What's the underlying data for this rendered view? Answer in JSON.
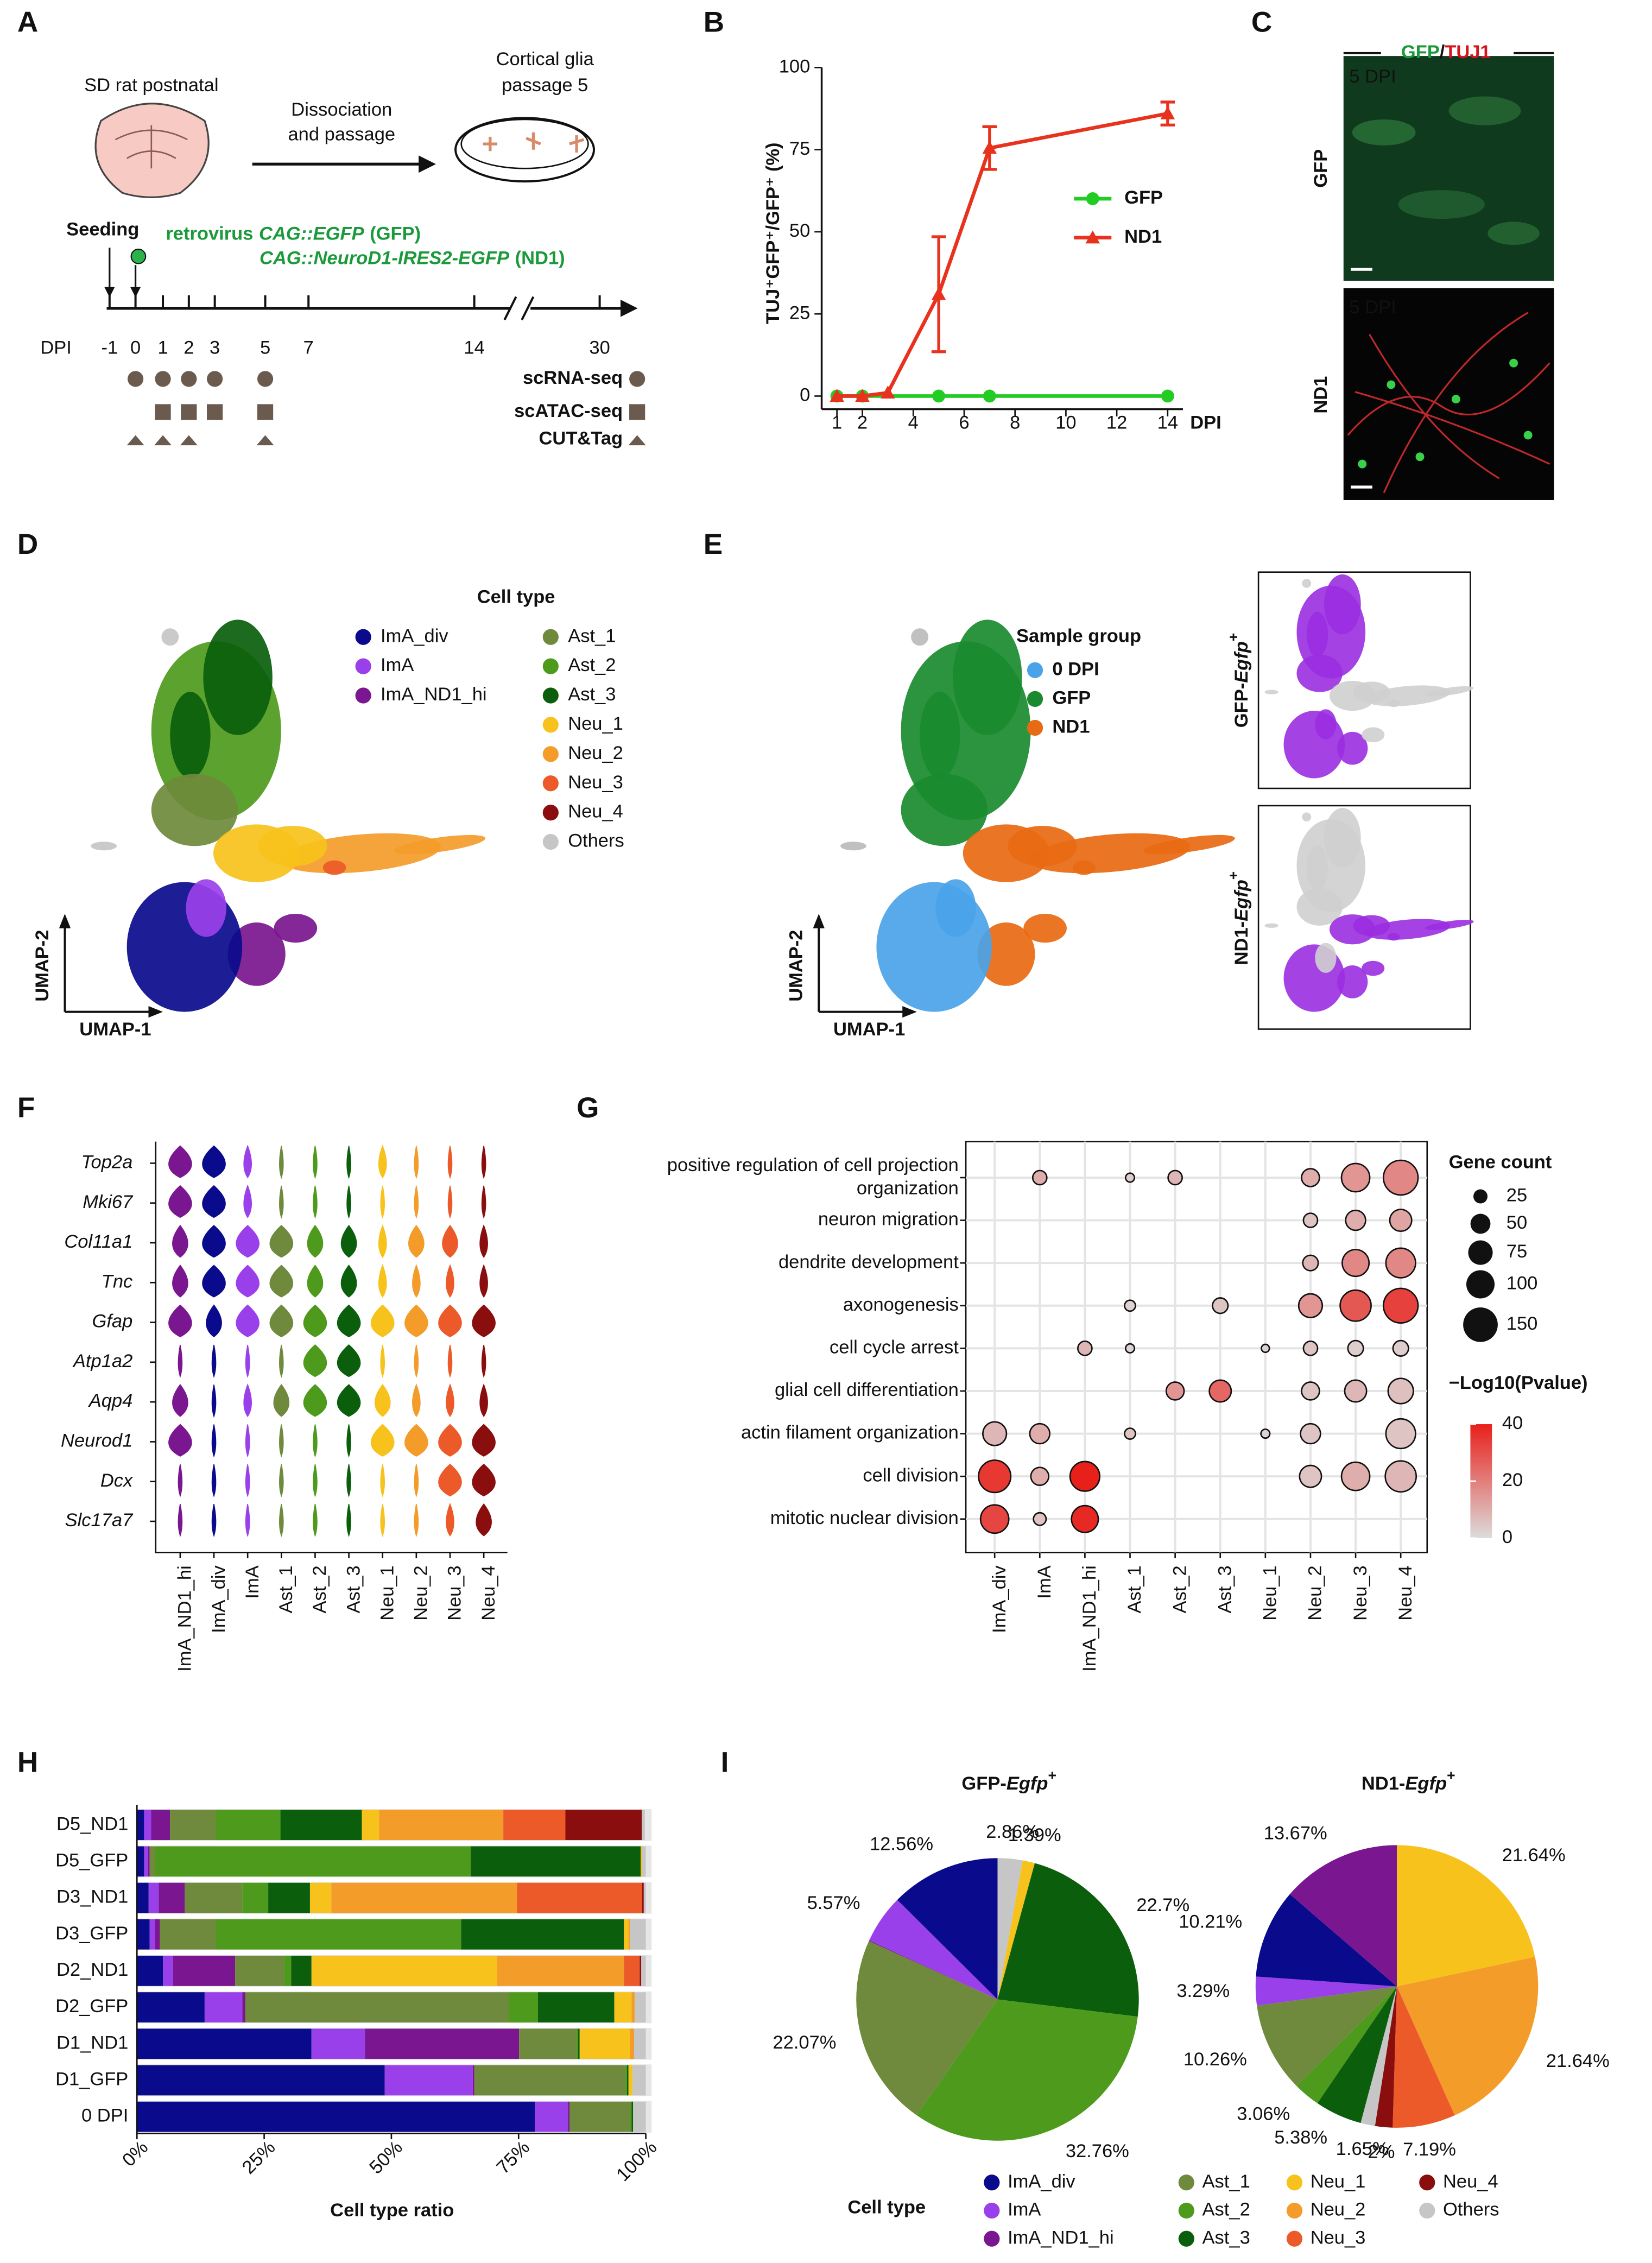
{
  "panel_letters": [
    "A",
    "B",
    "C",
    "D",
    "E",
    "F",
    "G",
    "H",
    "I"
  ],
  "panel_a": {
    "brain_label": "SD rat postnatal",
    "step": [
      "Dissociation",
      "and passage"
    ],
    "dish": [
      "Cortical glia",
      "passage 5"
    ],
    "seeding": "Seeding",
    "virus": {
      "prefix": "retrovirus",
      "gfp": "CAG::EGFP",
      "gfp_tag": "(GFP)",
      "nd1": "CAG::NeuroD1-IRES2-EGFP",
      "nd1_tag": "(ND1)"
    },
    "axis_label": "DPI",
    "days": [
      "-1",
      "0",
      "1",
      "2",
      "3",
      "5",
      "7",
      "14",
      "30"
    ],
    "assays": [
      "scRNA-seq",
      "scATAC-seq",
      "CUT&Tag"
    ]
  },
  "panel_c": {
    "title": [
      "GFP",
      "/",
      "TUJ1"
    ],
    "time": [
      "5 DPI",
      "5 DPI"
    ],
    "rows": [
      "GFP",
      "ND1"
    ]
  },
  "panel_d": {
    "legend_title": "Cell type",
    "cell_types": [
      "ImA_div",
      "ImA",
      "ImA_ND1_hi",
      "Ast_1",
      "Ast_2",
      "Ast_3",
      "Neu_1",
      "Neu_2",
      "Neu_3",
      "Neu_4",
      "Others"
    ],
    "colors": [
      "#0a0a8c",
      "#9a40ea",
      "#7a168f",
      "#6f8a3c",
      "#4e9a1c",
      "#0a5e0c",
      "#f7c21b",
      "#f39c2a",
      "#eb5a28",
      "#8a0e0e",
      "#c6c6c6"
    ],
    "axes": [
      "UMAP-2",
      "UMAP-1"
    ]
  },
  "panel_e": {
    "legend_title": "Sample group",
    "groups": [
      "0 DPI",
      "GFP",
      "ND1"
    ],
    "colors": [
      "#4aa3e8",
      "#1a8a2e",
      "#e86a12"
    ],
    "insets": [
      [
        "GFP-",
        "Egfp",
        "+"
      ],
      [
        "ND1-",
        "Egfp",
        "+"
      ]
    ],
    "axes": [
      "UMAP-2",
      "UMAP-1"
    ]
  },
  "panel_f": {
    "genes": [
      "Top2a",
      "Mki67",
      "Col11a1",
      "Tnc",
      "Gfap",
      "Atp1a2",
      "Aqp4",
      "Neurod1",
      "Dcx",
      "Slc17a7"
    ],
    "cell_types": [
      "ImA_ND1_hi",
      "ImA_div",
      "ImA",
      "Ast_1",
      "Ast_2",
      "Ast_3",
      "Neu_1",
      "Neu_2",
      "Neu_3",
      "Neu_4"
    ],
    "colors": [
      "#7a168f",
      "#0a0a8c",
      "#9a40ea",
      "#6f8a3c",
      "#4e9a1c",
      "#0a5e0c",
      "#f7c21b",
      "#f39c2a",
      "#eb5a28",
      "#8a0e0e"
    ]
  },
  "panel_i_legend": {
    "title": "Cell type",
    "names": [
      "ImA_div",
      "ImA",
      "ImA_ND1_hi",
      "Ast_1",
      "Ast_2",
      "Ast_3",
      "Neu_1",
      "Neu_2",
      "Neu_3",
      "Neu_4",
      "Others"
    ],
    "colors": [
      "#0a0a8c",
      "#9a40ea",
      "#7a168f",
      "#6f8a3c",
      "#4e9a1c",
      "#0a5e0c",
      "#f7c21b",
      "#f39c2a",
      "#eb5a28",
      "#8a0e0e",
      "#c6c6c6"
    ]
  },
  "chart_data": [
    {
      "type": "line",
      "ylabel": "TUJ⁺GFP⁺/GFP⁺ (%)",
      "xlabel": "DPI",
      "xlim": [
        0.4,
        14.6
      ],
      "xticks": [
        1,
        2,
        4,
        6,
        8,
        10,
        12,
        14
      ],
      "ylim": [
        -4,
        100
      ],
      "yticks": [
        0,
        25,
        50,
        75,
        100
      ],
      "legend": "right",
      "series": [
        {
          "name": "GFP",
          "color": "#22cc22",
          "marker": "circle",
          "x": [
            1,
            2,
            5,
            7,
            14
          ],
          "values": [
            0,
            0,
            0,
            0,
            0
          ]
        },
        {
          "name": "ND1",
          "color": "#e8321e",
          "marker": "triangle",
          "x": [
            1,
            2,
            3,
            5,
            7,
            14
          ],
          "values": [
            0,
            0,
            1,
            31,
            75.5,
            86
          ],
          "errors": [
            null,
            null,
            null,
            17.5,
            6.5,
            3.5
          ]
        }
      ]
    },
    {
      "type": "dot",
      "categories": [
        "ImA_div",
        "ImA",
        "ImA_ND1_hi",
        "Ast_1",
        "Ast_2",
        "Ast_3",
        "Neu_1",
        "Neu_2",
        "Neu_3",
        "Neu_4"
      ],
      "terms": [
        [
          "positive regulation of cell projection",
          "organization"
        ],
        [
          "neuron migration"
        ],
        [
          "dendrite development"
        ],
        [
          "axonogenesis"
        ],
        [
          "cell cycle arrest"
        ],
        [
          "glial cell differentiation"
        ],
        [
          "actin filament organization"
        ],
        [
          "cell division"
        ],
        [
          "mitotic nuclear division"
        ]
      ],
      "counts": [
        [
          null,
          25,
          null,
          10,
          25,
          null,
          null,
          40,
          100,
          150
        ],
        [
          null,
          null,
          null,
          null,
          null,
          null,
          null,
          25,
          50,
          60
        ],
        [
          null,
          null,
          null,
          null,
          null,
          null,
          null,
          30,
          90,
          110
        ],
        [
          null,
          null,
          null,
          15,
          null,
          30,
          null,
          70,
          120,
          150
        ],
        [
          null,
          null,
          25,
          10,
          null,
          null,
          8,
          25,
          30,
          30
        ],
        [
          null,
          null,
          null,
          null,
          40,
          60,
          null,
          40,
          60,
          80
        ],
        [
          70,
          50,
          null,
          15,
          null,
          null,
          10,
          50,
          null,
          110
        ],
        [
          130,
          40,
          110,
          null,
          null,
          null,
          null,
          60,
          100,
          120
        ],
        [
          100,
          20,
          90,
          null,
          null,
          null,
          null,
          null,
          null,
          null
        ]
      ],
      "logp": [
        [
          null,
          10,
          null,
          3,
          8,
          null,
          null,
          10,
          15,
          18
        ],
        [
          null,
          null,
          null,
          null,
          null,
          null,
          null,
          5,
          10,
          12
        ],
        [
          null,
          null,
          null,
          null,
          null,
          null,
          null,
          8,
          18,
          18
        ],
        [
          null,
          null,
          null,
          2,
          null,
          5,
          null,
          15,
          28,
          33
        ],
        [
          null,
          null,
          8,
          2,
          null,
          null,
          2,
          5,
          3,
          3
        ],
        [
          null,
          null,
          null,
          null,
          15,
          25,
          null,
          5,
          8,
          6
        ],
        [
          8,
          10,
          null,
          5,
          null,
          null,
          2,
          5,
          null,
          5
        ],
        [
          35,
          10,
          40,
          null,
          null,
          null,
          null,
          5,
          10,
          8
        ],
        [
          32,
          5,
          38,
          null,
          null,
          null,
          null,
          null,
          null,
          null
        ]
      ],
      "grid": true,
      "size_legend": {
        "title": "Gene count",
        "values": [
          25,
          50,
          75,
          100,
          150
        ]
      },
      "color_legend": {
        "title": "−Log10(Pvalue)",
        "clim": [
          0,
          40
        ],
        "ticks": [
          0,
          20,
          40
        ],
        "colors": [
          "#dcdcdc",
          "#e8201a"
        ]
      }
    },
    {
      "type": "stacked-bar",
      "orientation": "horizontal",
      "xlabel": "Cell type ratio",
      "categories": [
        "D5_ND1",
        "D5_GFP",
        "D3_ND1",
        "D3_GFP",
        "D2_ND1",
        "D2_GFP",
        "D1_ND1",
        "D1_GFP",
        "0 DPI"
      ],
      "xlim": [
        0,
        100
      ],
      "xticks": [
        {
          "value": 0,
          "label": "0%"
        },
        {
          "value": 25,
          "label": "25%"
        },
        {
          "value": 50,
          "label": "50%"
        },
        {
          "value": 75,
          "label": "75%"
        },
        {
          "value": 100,
          "label": "100%"
        }
      ],
      "series": [
        {
          "name": "ImA_div",
          "color": "#0a0a8c",
          "values": [
            1.4,
            1.4,
            2.3,
            2.5,
            5.1,
            13.3,
            34.3,
            48.7,
            78.2
          ]
        },
        {
          "name": "ImA",
          "color": "#9a40ea",
          "values": [
            1.4,
            0.8,
            2,
            1.1,
            2,
            7.4,
            10.5,
            17.3,
            6.5
          ]
        },
        {
          "name": "ImA_ND1_hi",
          "color": "#7a168f",
          "values": [
            3.7,
            0.3,
            5.1,
            0.9,
            12.2,
            0.6,
            30.3,
            0.3,
            0.3
          ]
        },
        {
          "name": "Ast_1",
          "color": "#6f8a3c",
          "values": [
            9,
            1.1,
            11.3,
            11,
            9.6,
            51.8,
            11.3,
            29.7,
            11.9
          ]
        },
        {
          "name": "Ast_2",
          "color": "#4e9a1c",
          "values": [
            12.7,
            62,
            5.1,
            48.2,
            1.4,
            5.7,
            0.3,
            0.3,
            0.3
          ]
        },
        {
          "name": "Ast_3",
          "color": "#0a5e0c",
          "values": [
            16,
            33.4,
            8.2,
            32,
            4,
            15,
            0.3,
            0.3,
            0.3
          ]
        },
        {
          "name": "Neu_1",
          "color": "#f7c21b",
          "values": [
            3.4,
            0.3,
            4.2,
            0.9,
            36.5,
            3.4,
            9.9,
            0.8,
            0
          ]
        },
        {
          "name": "Neu_2",
          "color": "#f39c2a",
          "values": [
            24.4,
            0,
            36.5,
            0.3,
            24.9,
            0.6,
            0.8,
            0,
            0
          ]
        },
        {
          "name": "Neu_3",
          "color": "#eb5a28",
          "values": [
            12.2,
            0,
            24.6,
            0,
            3.1,
            0,
            0,
            0,
            0
          ]
        },
        {
          "name": "Neu_4",
          "color": "#8a0e0e",
          "values": [
            15,
            0,
            0.3,
            0,
            0.3,
            0,
            0,
            0,
            0
          ]
        },
        {
          "name": "Others",
          "color": "#c6c6c6",
          "values": [
            0.6,
            0.7,
            0.4,
            3.1,
            0.9,
            2.2,
            2.3,
            2.6,
            2.5
          ]
        }
      ]
    },
    {
      "type": "pie",
      "title": [
        "GFP-",
        "Egfp",
        "+"
      ],
      "categories": [
        "Others",
        "Neu_1",
        "Ast_3",
        "Ast_2",
        "Ast_1",
        "ImA_ND1_hi",
        "ImA",
        "ImA_div"
      ],
      "values": [
        2.86,
        1.39,
        22.7,
        32.76,
        22.07,
        0.09,
        5.57,
        12.56
      ],
      "value_labels": [
        "2.86%",
        "1.39%",
        "22.7%",
        "32.76%",
        "22.07%",
        null,
        "5.57%",
        "12.56%"
      ],
      "colors": [
        "#c6c6c6",
        "#f7c21b",
        "#0a5e0c",
        "#4e9a1c",
        "#6f8a3c",
        "#7a168f",
        "#9a40ea",
        "#0a0a8c"
      ]
    },
    {
      "type": "pie",
      "title": [
        "ND1-",
        "Egfp",
        "+"
      ],
      "categories": [
        "Neu_1",
        "Neu_2",
        "Neu_3",
        "Neu_4",
        "Others",
        "Ast_3",
        "Ast_2",
        "Ast_1",
        "ImA",
        "ImA_div",
        "ImA_ND1_hi"
      ],
      "values": [
        21.64,
        21.64,
        7.19,
        2,
        1.65,
        5.38,
        3.06,
        10.26,
        3.29,
        10.21,
        13.67
      ],
      "value_labels": [
        "21.64%",
        "21.64%",
        "7.19%",
        "2%",
        "1.65%",
        "5.38%",
        "3.06%",
        "10.26%",
        "3.29%",
        "10.21%",
        "13.67%"
      ],
      "colors": [
        "#f7c21b",
        "#f39c2a",
        "#eb5a28",
        "#8a0e0e",
        "#c6c6c6",
        "#0a5e0c",
        "#4e9a1c",
        "#6f8a3c",
        "#9a40ea",
        "#0a0a8c",
        "#7a168f"
      ]
    }
  ]
}
